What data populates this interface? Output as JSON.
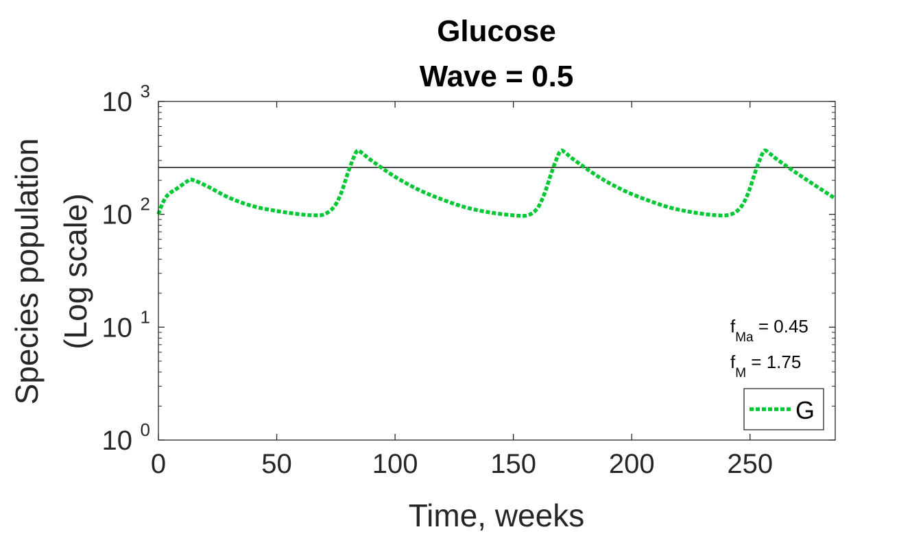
{
  "chart_data": {
    "type": "line",
    "title": [
      "Glucose",
      "Wave = 0.5"
    ],
    "xlabel": "Time, weeks",
    "ylabel": [
      "Species population",
      "(Log scale)"
    ],
    "xlim": [
      0,
      286
    ],
    "ylim": [
      1,
      1000
    ],
    "yscale": "log",
    "xticks": [
      0,
      50,
      100,
      150,
      200,
      250
    ],
    "xtick_labels": [
      "0",
      "50",
      "100",
      "150",
      "200",
      "250"
    ],
    "yticks": [
      1,
      10,
      100,
      1000
    ],
    "ytick_labels": [
      {
        "base": "10",
        "exp": "0"
      },
      {
        "base": "10",
        "exp": "1"
      },
      {
        "base": "10",
        "exp": "2"
      },
      {
        "base": "10",
        "exp": "3"
      }
    ],
    "grid": false,
    "reference_line": {
      "y": 260,
      "color": "#000000"
    },
    "annotations": [
      {
        "symbol": "f",
        "subscript": "Ma",
        "text": " = 0.45"
      },
      {
        "symbol": "f",
        "subscript": "M",
        "text": " = 1.75"
      }
    ],
    "legend": {
      "location": "bottom-right",
      "entries": [
        "G"
      ]
    },
    "series": [
      {
        "name": "G",
        "color": "#00c832",
        "style": "dotted",
        "x": [
          0,
          1,
          3,
          5,
          8,
          12,
          14,
          20,
          30,
          40,
          50,
          60,
          66,
          70,
          74,
          77,
          80,
          82,
          84,
          86,
          90,
          100,
          110,
          120,
          130,
          140,
          150,
          156,
          160,
          163,
          166,
          168,
          170,
          172,
          176,
          186,
          196,
          206,
          216,
          226,
          236,
          242,
          246,
          249,
          252,
          254,
          256,
          258,
          262,
          272,
          286
        ],
        "y": [
          100,
          115,
          140,
          155,
          170,
          195,
          203,
          180,
          140,
          118,
          107,
          100,
          98,
          100,
          115,
          150,
          230,
          300,
          365,
          350,
          300,
          215,
          165,
          135,
          115,
          104,
          98,
          98,
          112,
          150,
          230,
          300,
          365,
          350,
          300,
          215,
          165,
          135,
          115,
          104,
          98,
          100,
          115,
          150,
          230,
          300,
          365,
          350,
          300,
          215,
          138
        ]
      }
    ]
  }
}
